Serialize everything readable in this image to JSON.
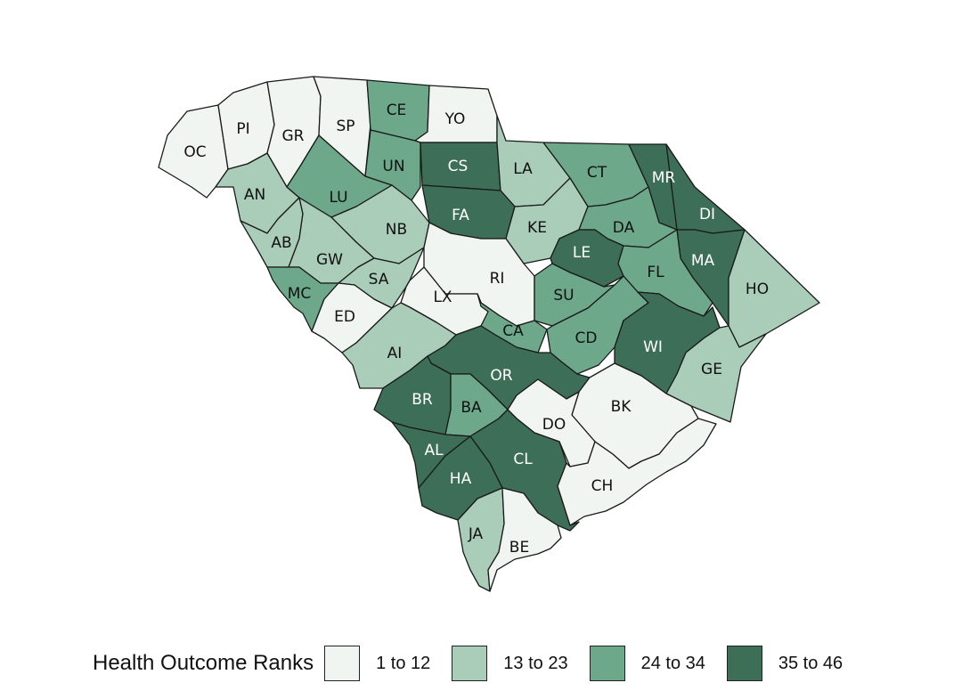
{
  "legend": {
    "title": "Health Outcome Ranks",
    "items": [
      {
        "label": "1 to 12",
        "color": "#f0f5f2"
      },
      {
        "label": "13 to 23",
        "color": "#a9cdb9"
      },
      {
        "label": "24 to 34",
        "color": "#6da88a"
      },
      {
        "label": "35 to 46",
        "color": "#3d6e57"
      }
    ]
  },
  "counties": [
    {
      "abbr": "OC",
      "rank_class": 0
    },
    {
      "abbr": "PI",
      "rank_class": 0
    },
    {
      "abbr": "GR",
      "rank_class": 0
    },
    {
      "abbr": "SP",
      "rank_class": 0
    },
    {
      "abbr": "CE",
      "rank_class": 2
    },
    {
      "abbr": "YO",
      "rank_class": 0
    },
    {
      "abbr": "UN",
      "rank_class": 2
    },
    {
      "abbr": "CS",
      "rank_class": 3
    },
    {
      "abbr": "LA",
      "rank_class": 1
    },
    {
      "abbr": "CT",
      "rank_class": 2
    },
    {
      "abbr": "MR",
      "rank_class": 3
    },
    {
      "abbr": "AN",
      "rank_class": 1
    },
    {
      "abbr": "LU",
      "rank_class": 2
    },
    {
      "abbr": "FA",
      "rank_class": 3
    },
    {
      "abbr": "KE",
      "rank_class": 1
    },
    {
      "abbr": "DI",
      "rank_class": 3
    },
    {
      "abbr": "DA",
      "rank_class": 2
    },
    {
      "abbr": "AB",
      "rank_class": 1
    },
    {
      "abbr": "NB",
      "rank_class": 1
    },
    {
      "abbr": "GW",
      "rank_class": 1
    },
    {
      "abbr": "LE",
      "rank_class": 3
    },
    {
      "abbr": "MA",
      "rank_class": 3
    },
    {
      "abbr": "SA",
      "rank_class": 1
    },
    {
      "abbr": "RI",
      "rank_class": 0
    },
    {
      "abbr": "FL",
      "rank_class": 2
    },
    {
      "abbr": "HO",
      "rank_class": 1
    },
    {
      "abbr": "MC",
      "rank_class": 2
    },
    {
      "abbr": "LX",
      "rank_class": 0
    },
    {
      "abbr": "SU",
      "rank_class": 2
    },
    {
      "abbr": "ED",
      "rank_class": 0
    },
    {
      "abbr": "CA",
      "rank_class": 2
    },
    {
      "abbr": "CD",
      "rank_class": 2
    },
    {
      "abbr": "WI",
      "rank_class": 3
    },
    {
      "abbr": "AI",
      "rank_class": 1
    },
    {
      "abbr": "OR",
      "rank_class": 3
    },
    {
      "abbr": "GE",
      "rank_class": 1
    },
    {
      "abbr": "BR",
      "rank_class": 3
    },
    {
      "abbr": "BA",
      "rank_class": 2
    },
    {
      "abbr": "BK",
      "rank_class": 0
    },
    {
      "abbr": "DO",
      "rank_class": 0
    },
    {
      "abbr": "AL",
      "rank_class": 3
    },
    {
      "abbr": "CL",
      "rank_class": 3
    },
    {
      "abbr": "HA",
      "rank_class": 3
    },
    {
      "abbr": "CH",
      "rank_class": 0
    },
    {
      "abbr": "JA",
      "rank_class": 1
    },
    {
      "abbr": "BE",
      "rank_class": 0
    }
  ]
}
